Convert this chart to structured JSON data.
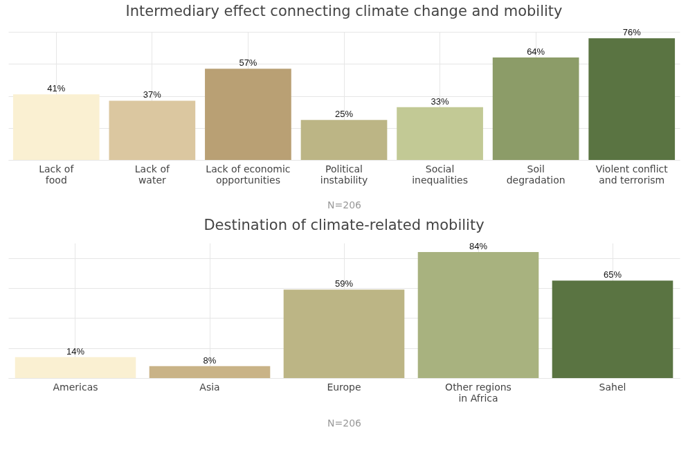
{
  "chart_data": [
    {
      "type": "bar",
      "title": "Intermediary effect connecting climate change and mobility",
      "categories": [
        "Lack of\nfood",
        "Lack of\nwater",
        "Lack of economic\nopportunities",
        "Political\ninstability",
        "Social\ninequalities",
        "Soil\ndegradation",
        "Violent conflict\nand terrorism"
      ],
      "values": [
        41,
        37,
        57,
        25,
        33,
        64,
        76
      ],
      "colors": [
        "#faf0d2",
        "#dbc7a0",
        "#b9a074",
        "#bcb585",
        "#c2c995",
        "#8c9c68",
        "#5a7442"
      ],
      "value_labels": [
        "41%",
        "37%",
        "57%",
        "25%",
        "33%",
        "64%",
        "76%"
      ],
      "tick_labels": "x",
      "grid": true,
      "annotations": [
        "N=206"
      ]
    },
    {
      "type": "bar",
      "title": "Destination of climate-related mobility",
      "categories": [
        "Americas",
        "Asia",
        "Europe",
        "Other regions\nin Africa",
        "Sahel"
      ],
      "values": [
        14,
        8,
        59,
        84,
        65
      ],
      "colors": [
        "#faf0d2",
        "#c9b387",
        "#bcb585",
        "#a8b27f",
        "#5a7442"
      ],
      "value_labels": [
        "14%",
        "8%",
        "59%",
        "84%",
        "65%"
      ],
      "tick_labels": "x",
      "grid": true,
      "annotations": [
        "N=206"
      ]
    }
  ]
}
